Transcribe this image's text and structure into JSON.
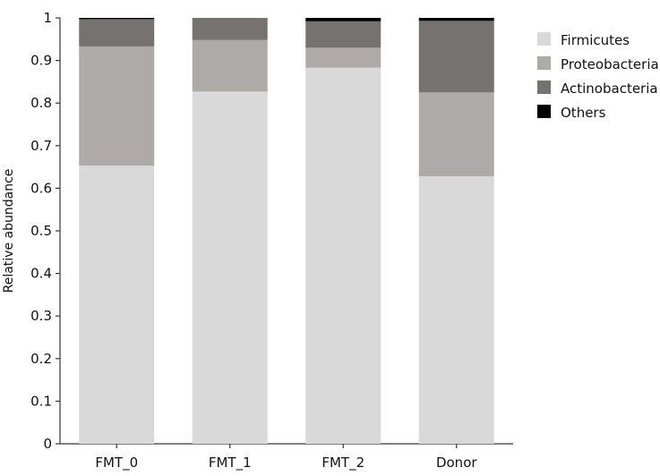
{
  "chart_data": {
    "type": "bar",
    "stacked": true,
    "title": "",
    "xlabel": "",
    "ylabel": "Relative abundance",
    "ylim": [
      0,
      1
    ],
    "yticks": [
      "0",
      "0.1",
      "0.2",
      "0.3",
      "0.4",
      "0.5",
      "0.6",
      "0.7",
      "0.8",
      "0.9",
      "1"
    ],
    "categories": [
      "FMT_0",
      "FMT_1",
      "FMT_2",
      "Donor"
    ],
    "series": [
      {
        "name": "Firmicutes",
        "color": "#d9d9d9",
        "values": [
          0.653,
          0.827,
          0.883,
          0.628
        ]
      },
      {
        "name": "Proteobacteria",
        "color": "#adaaa9",
        "values": [
          0.28,
          0.121,
          0.047,
          0.197
        ]
      },
      {
        "name": "Actinobacteria",
        "color": "#767271",
        "values": [
          0.064,
          0.052,
          0.062,
          0.168
        ]
      },
      {
        "name": "Others",
        "color": "#000000",
        "values": [
          0.003,
          0.0,
          0.008,
          0.007
        ]
      }
    ],
    "grid": false,
    "legend_position": "top-right"
  }
}
